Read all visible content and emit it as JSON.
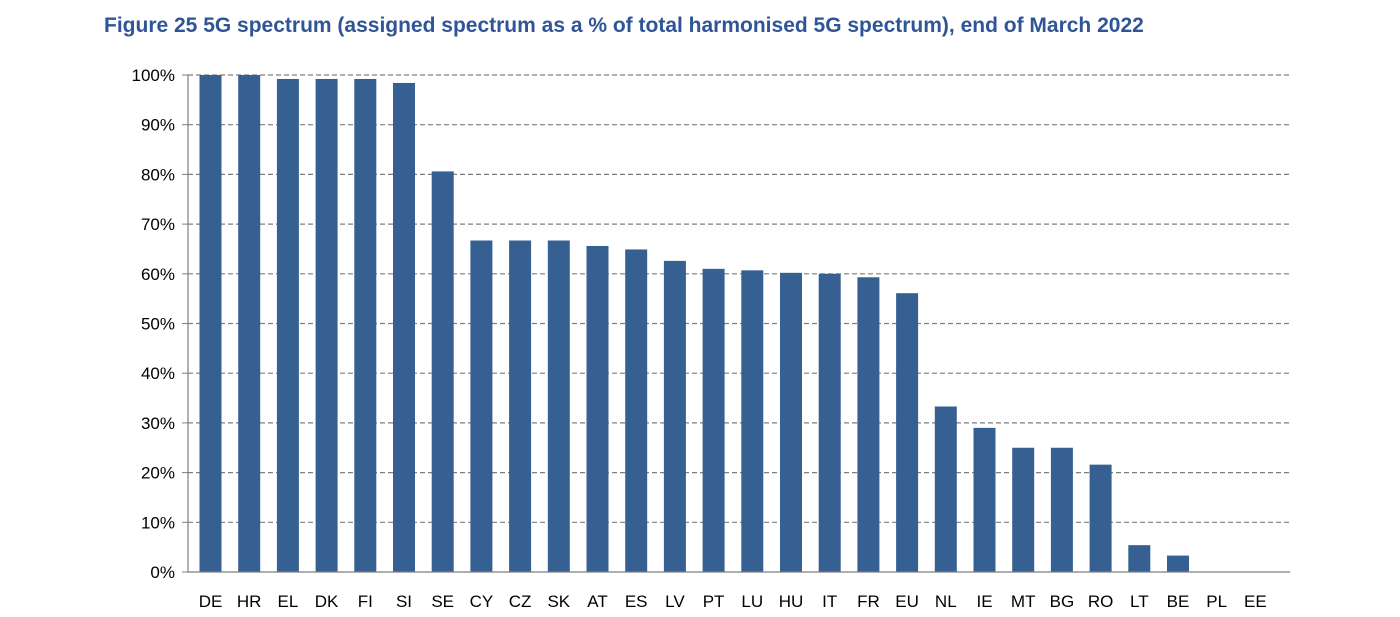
{
  "chart_data": {
    "type": "bar",
    "title": "Figure 25 5G spectrum (assigned spectrum as a % of total harmonised 5G spectrum), end of March 2022",
    "xlabel": "",
    "ylabel": "",
    "categories": [
      "DE",
      "HR",
      "EL",
      "DK",
      "FI",
      "SI",
      "SE",
      "CY",
      "CZ",
      "SK",
      "AT",
      "ES",
      "LV",
      "PT",
      "LU",
      "HU",
      "IT",
      "FR",
      "EU",
      "NL",
      "IE",
      "MT",
      "BG",
      "RO",
      "LT",
      "BE",
      "PL",
      "EE"
    ],
    "values": [
      100,
      100,
      99.2,
      99.2,
      99.2,
      98.4,
      80.6,
      66.7,
      66.7,
      66.7,
      65.6,
      64.9,
      62.6,
      61.0,
      60.7,
      60.2,
      60.0,
      59.3,
      56.1,
      33.3,
      29.0,
      25.0,
      25.0,
      21.6,
      5.4,
      3.3,
      0,
      0
    ],
    "yticks": [
      "0%",
      "10%",
      "20%",
      "30%",
      "40%",
      "50%",
      "60%",
      "70%",
      "80%",
      "90%",
      "100%"
    ],
    "ylim": [
      0,
      100
    ],
    "grid": true,
    "grid_style": "dashed",
    "legend": "none",
    "bar_color": "#376092"
  }
}
